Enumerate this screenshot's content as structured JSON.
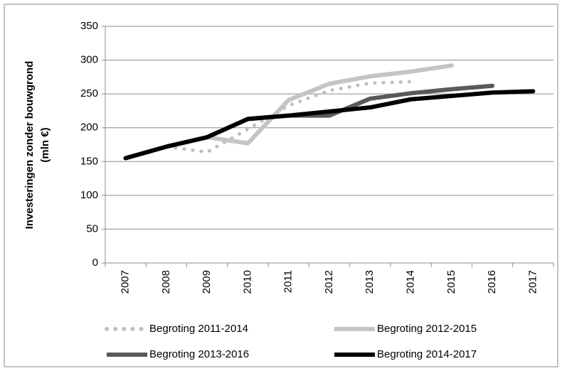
{
  "chart_data": {
    "type": "line",
    "y_label": [
      "Investeringen zonder bouwgrond",
      "(mln €)"
    ],
    "categories": [
      "2007",
      "2008",
      "2009",
      "2010",
      "2011",
      "2012",
      "2013",
      "2014",
      "2015",
      "2016",
      "2017"
    ],
    "series": [
      {
        "name": "Begroting 2011-2014",
        "color": "#bfbfbf",
        "dash": true,
        "values": [
          155,
          172,
          164,
          198,
          233,
          255,
          266,
          268,
          null,
          null,
          null
        ]
      },
      {
        "name": "Begroting 2012-2015",
        "color": "#c4c4c4",
        "dash": false,
        "values": [
          155,
          172,
          186,
          177,
          241,
          265,
          276,
          283,
          292,
          null,
          null
        ]
      },
      {
        "name": "Begroting 2013-2016",
        "color": "#595959",
        "dash": false,
        "values": [
          155,
          172,
          186,
          213,
          218,
          218,
          243,
          251,
          257,
          262,
          null
        ]
      },
      {
        "name": "Begroting 2014-2017",
        "color": "#000000",
        "dash": false,
        "values": [
          155,
          172,
          186,
          213,
          218,
          224,
          230,
          242,
          247,
          252,
          254
        ]
      }
    ],
    "ylim": [
      0,
      350
    ],
    "yticks": [
      0,
      50,
      100,
      150,
      200,
      250,
      300,
      350
    ],
    "grid": true
  }
}
